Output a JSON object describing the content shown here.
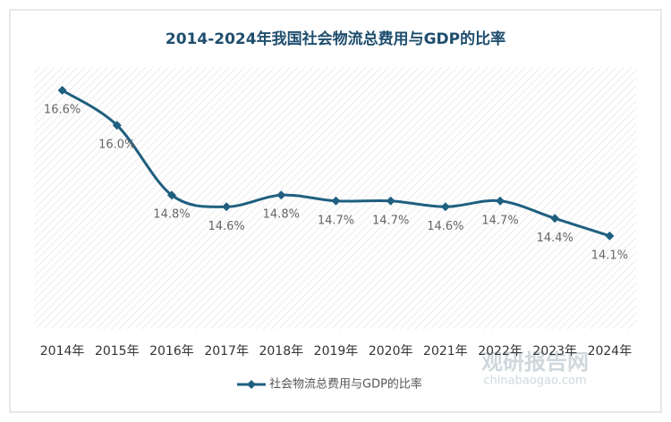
{
  "chart_data": {
    "type": "line",
    "title": "2014-2024年我国社会物流总费用与GDP的比率",
    "categories": [
      "2014年",
      "2015年",
      "2016年",
      "2017年",
      "2018年",
      "2019年",
      "2020年",
      "2021年",
      "2022年",
      "2023年",
      "2024年"
    ],
    "series": [
      {
        "name": "社会物流总费用与GDP的比率",
        "color": "#1f5f80",
        "values": [
          16.6,
          16.0,
          14.8,
          14.6,
          14.8,
          14.7,
          14.7,
          14.6,
          14.7,
          14.4,
          14.1
        ],
        "value_labels": [
          "16.6%",
          "16.0%",
          "14.8%",
          "14.6%",
          "14.8%",
          "14.7%",
          "14.7%",
          "14.6%",
          "14.7%",
          "14.4%",
          "14.1%"
        ]
      }
    ],
    "ylim": [
      12.5,
      17
    ],
    "smooth": true,
    "legend": "bottom",
    "watermark": {
      "brand": "观研报告网",
      "site": "chinabaogao.com"
    }
  }
}
